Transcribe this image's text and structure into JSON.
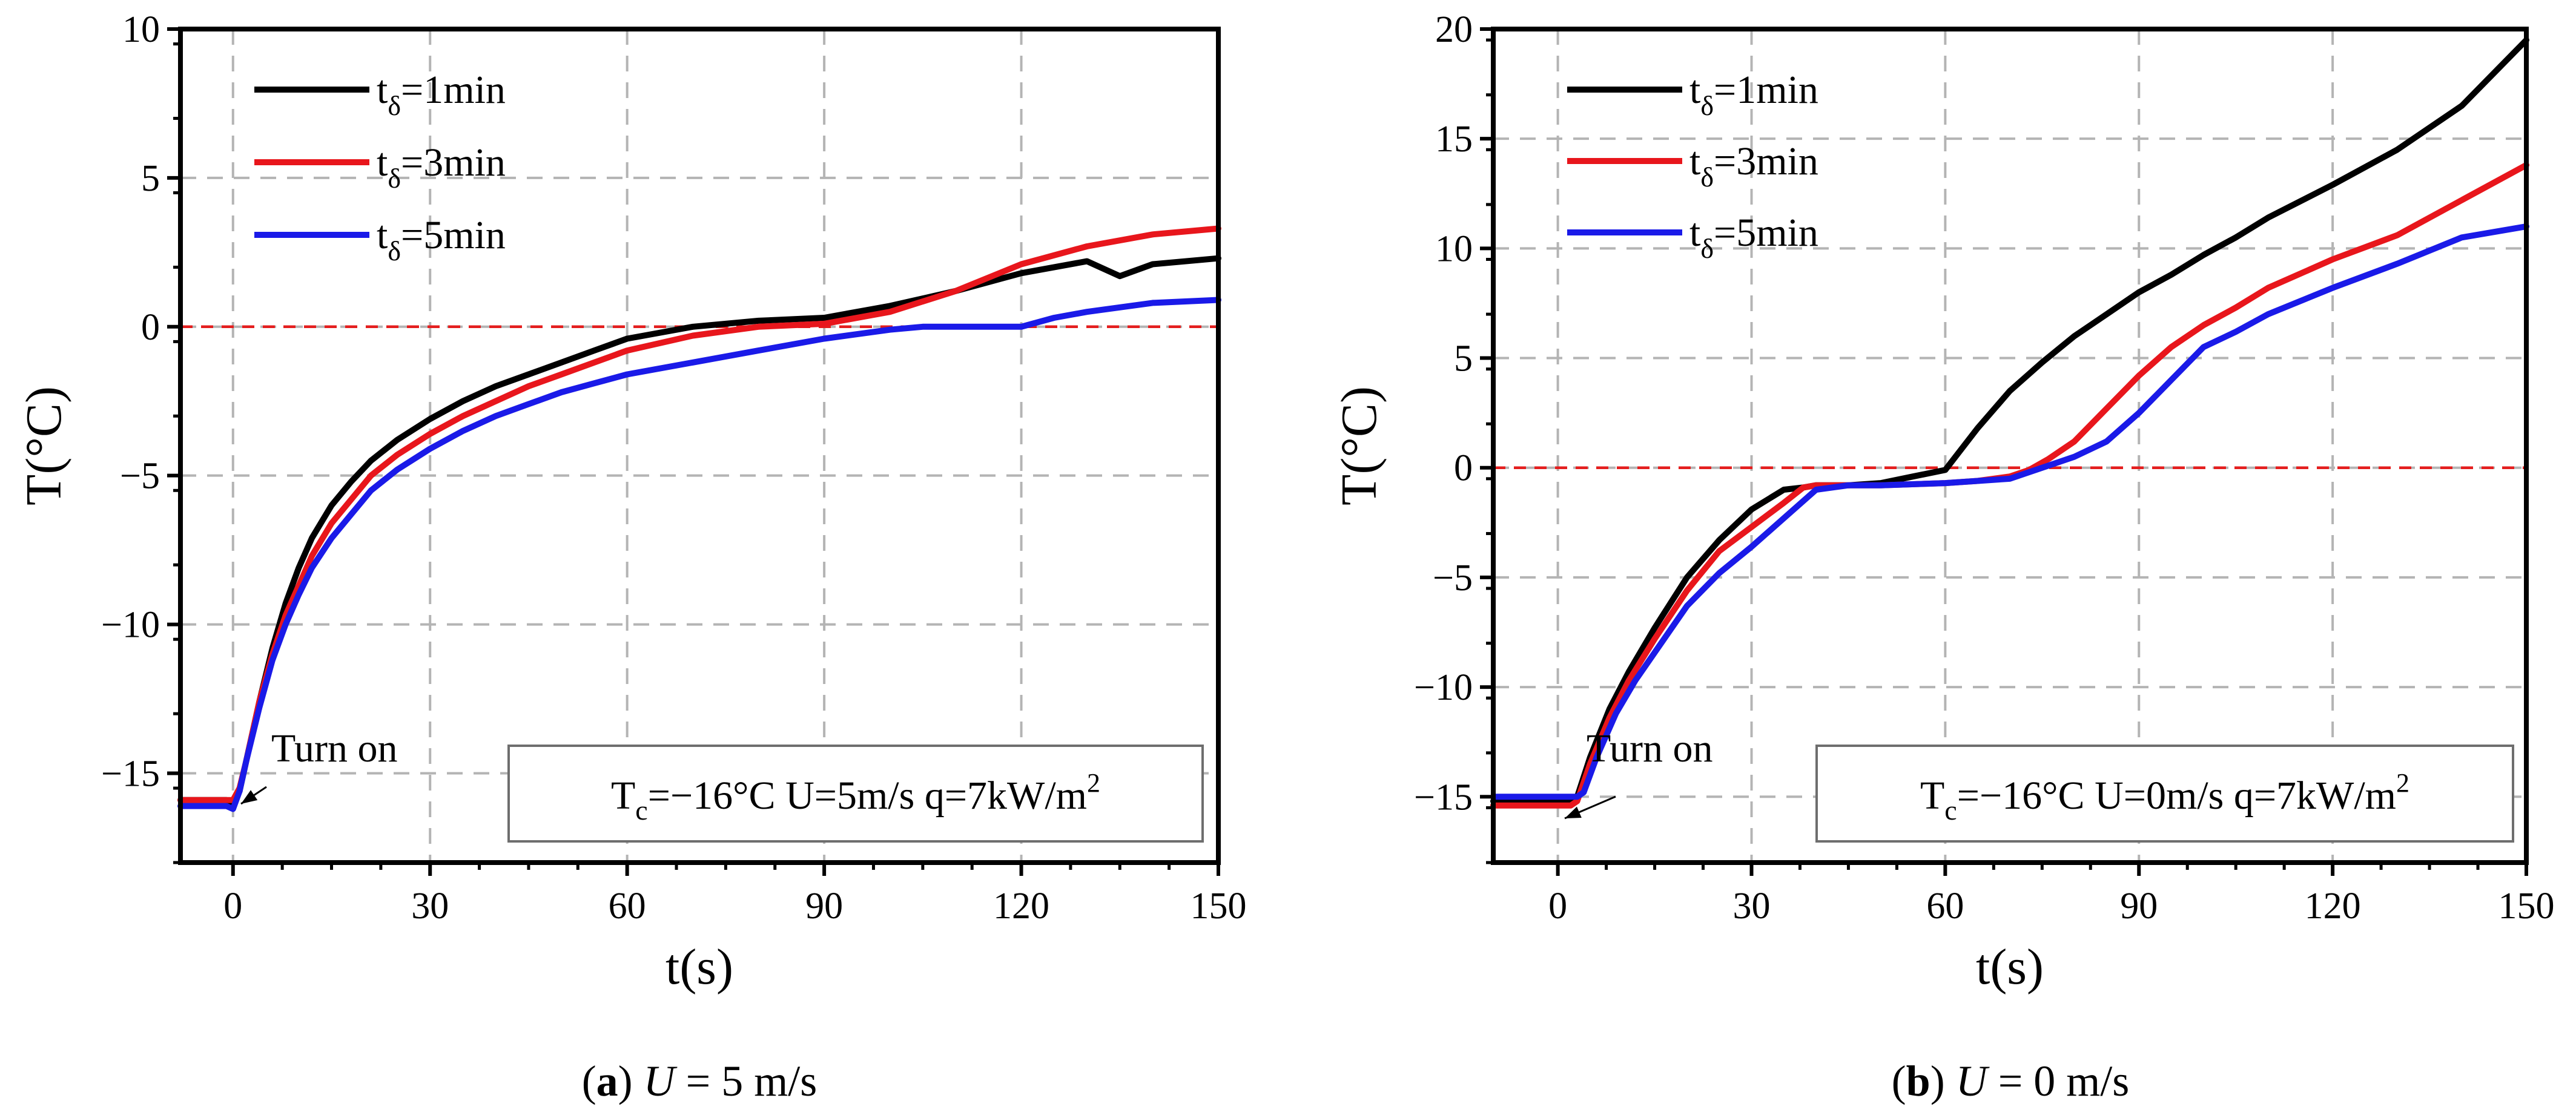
{
  "colors": {
    "series": [
      "#000000",
      "#e8161c",
      "#1a1ae8"
    ],
    "reference": "#e41e1e",
    "grid": "#b4b4b4"
  },
  "chart_data": [
    {
      "type": "line",
      "panel": "a",
      "xlabel": "t(s)",
      "ylabel": "T(°C)",
      "xlim": [
        -8,
        150
      ],
      "ylim": [
        -18,
        10
      ],
      "xticks": [
        0,
        30,
        60,
        90,
        120,
        150
      ],
      "xtick_labels": [
        "0",
        "30",
        "60",
        "90",
        "120",
        "150"
      ],
      "yticks": [
        -15,
        -10,
        -5,
        0,
        5,
        10
      ],
      "ytick_labels": [
        "−15",
        "−10",
        "−5",
        "0",
        "5",
        "10"
      ],
      "reference_line_y": 0,
      "grid": true,
      "legend": {
        "position": "top-left",
        "labels": [
          {
            "base": "t",
            "sub": "δ",
            "rest": "=1min"
          },
          {
            "base": "t",
            "sub": "δ",
            "rest": "=3min"
          },
          {
            "base": "t",
            "sub": "δ",
            "rest": "=5min"
          }
        ]
      },
      "annotation": {
        "text": "Turn on",
        "x": 0,
        "y": -16
      },
      "conditions": {
        "tc_base": "T",
        "tc_sub": "c",
        "tc_rest": "=−16°C",
        "u": "U=5m/s",
        "q": "q=7kW/m",
        "q_sup": "2"
      },
      "caption": {
        "letter": "a",
        "var": "U",
        "rest": " = 5 m/s"
      },
      "series": [
        {
          "name": "tδ=1min",
          "x": [
            -10,
            -1,
            0,
            1,
            2,
            4,
            6,
            8,
            10,
            12,
            15,
            18,
            21,
            25,
            30,
            35,
            40,
            45,
            50,
            55,
            60,
            70,
            80,
            90,
            100,
            110,
            120,
            130,
            135,
            140,
            150
          ],
          "y": [
            -15.9,
            -15.9,
            -16.0,
            -15.6,
            -14.6,
            -12.6,
            -10.8,
            -9.3,
            -8.1,
            -7.1,
            -6.0,
            -5.2,
            -4.5,
            -3.8,
            -3.1,
            -2.5,
            -2.0,
            -1.6,
            -1.2,
            -0.8,
            -0.4,
            0.0,
            0.2,
            0.3,
            0.7,
            1.2,
            1.8,
            2.2,
            1.7,
            2.1,
            2.3
          ]
        },
        {
          "name": "tδ=3min",
          "x": [
            -10,
            -1,
            0,
            1,
            2,
            4,
            6,
            8,
            10,
            12,
            15,
            18,
            21,
            25,
            30,
            35,
            40,
            45,
            50,
            55,
            60,
            70,
            80,
            90,
            100,
            110,
            120,
            130,
            140,
            150
          ],
          "y": [
            -15.9,
            -15.9,
            -15.9,
            -15.5,
            -14.6,
            -12.6,
            -11.0,
            -9.7,
            -8.7,
            -7.7,
            -6.6,
            -5.8,
            -5.0,
            -4.3,
            -3.6,
            -3.0,
            -2.5,
            -2.0,
            -1.6,
            -1.2,
            -0.8,
            -0.3,
            0.0,
            0.1,
            0.5,
            1.2,
            2.1,
            2.7,
            3.1,
            3.3
          ]
        },
        {
          "name": "tδ=5min",
          "x": [
            -10,
            -1,
            0,
            1,
            2,
            4,
            6,
            8,
            10,
            12,
            15,
            18,
            21,
            25,
            30,
            35,
            40,
            45,
            50,
            55,
            60,
            70,
            80,
            90,
            100,
            105,
            110,
            120,
            125,
            130,
            140,
            150
          ],
          "y": [
            -16.1,
            -16.1,
            -16.2,
            -15.6,
            -14.6,
            -12.8,
            -11.2,
            -10.0,
            -9.0,
            -8.1,
            -7.1,
            -6.3,
            -5.5,
            -4.8,
            -4.1,
            -3.5,
            -3.0,
            -2.6,
            -2.2,
            -1.9,
            -1.6,
            -1.2,
            -0.8,
            -0.4,
            -0.1,
            0.0,
            0.0,
            0.0,
            0.3,
            0.5,
            0.8,
            0.9
          ]
        }
      ]
    },
    {
      "type": "line",
      "panel": "b",
      "xlabel": "t(s)",
      "ylabel": "T(°C)",
      "xlim": [
        -10,
        150
      ],
      "ylim": [
        -18,
        20
      ],
      "xticks": [
        0,
        30,
        60,
        90,
        120,
        150
      ],
      "xtick_labels": [
        "0",
        "30",
        "60",
        "90",
        "120",
        "150"
      ],
      "yticks": [
        -15,
        -10,
        -5,
        0,
        5,
        10,
        15,
        20
      ],
      "ytick_labels": [
        "−15",
        "−10",
        "−5",
        "0",
        "5",
        "10",
        "15",
        "20"
      ],
      "reference_line_y": 0,
      "grid": true,
      "legend": {
        "position": "top-left",
        "labels": [
          {
            "base": "t",
            "sub": "δ",
            "rest": "=1min"
          },
          {
            "base": "t",
            "sub": "δ",
            "rest": "=3min"
          },
          {
            "base": "t",
            "sub": "δ",
            "rest": "=5min"
          }
        ]
      },
      "annotation": {
        "text": "Turn on",
        "x": 0,
        "y": -16
      },
      "conditions": {
        "tc_base": "T",
        "tc_sub": "c",
        "tc_rest": "=−16°C",
        "u": "U=0m/s",
        "q": "q=7kW/m",
        "q_sup": "2"
      },
      "caption": {
        "letter": "b",
        "var": "U",
        "rest": " = 0 m/s"
      },
      "series": [
        {
          "name": "tδ=1min",
          "x": [
            -10,
            2,
            3,
            5,
            8,
            11,
            15,
            20,
            25,
            30,
            35,
            38,
            40,
            45,
            50,
            55,
            60,
            65,
            70,
            75,
            80,
            85,
            90,
            95,
            100,
            105,
            110,
            120,
            130,
            140,
            150
          ],
          "y": [
            -15.2,
            -15.2,
            -15.0,
            -13.2,
            -11.0,
            -9.3,
            -7.3,
            -5.0,
            -3.3,
            -1.9,
            -1.0,
            -0.9,
            -0.8,
            -0.8,
            -0.7,
            -0.4,
            -0.1,
            1.8,
            3.5,
            4.8,
            6.0,
            7.0,
            8.0,
            8.8,
            9.7,
            10.5,
            11.4,
            12.9,
            14.5,
            16.5,
            19.5
          ]
        },
        {
          "name": "tδ=3min",
          "x": [
            -10,
            2,
            3,
            5,
            8,
            11,
            15,
            20,
            25,
            30,
            35,
            38,
            40,
            45,
            50,
            60,
            65,
            70,
            73,
            76,
            80,
            85,
            90,
            95,
            100,
            105,
            110,
            120,
            130,
            140,
            150
          ],
          "y": [
            -15.4,
            -15.4,
            -15.2,
            -13.5,
            -11.4,
            -9.7,
            -7.8,
            -5.6,
            -3.8,
            -2.7,
            -1.6,
            -0.9,
            -0.8,
            -0.8,
            -0.8,
            -0.7,
            -0.6,
            -0.4,
            -0.1,
            0.4,
            1.2,
            2.7,
            4.2,
            5.5,
            6.5,
            7.3,
            8.2,
            9.5,
            10.6,
            12.2,
            13.8
          ]
        },
        {
          "name": "tδ=5min",
          "x": [
            -10,
            3,
            4,
            6,
            9,
            12,
            16,
            20,
            25,
            30,
            35,
            40,
            45,
            50,
            60,
            70,
            73,
            76,
            80,
            85,
            90,
            95,
            100,
            105,
            110,
            120,
            130,
            140,
            150
          ],
          "y": [
            -15.0,
            -15.0,
            -14.8,
            -13.2,
            -11.2,
            -9.7,
            -8.0,
            -6.3,
            -4.8,
            -3.6,
            -2.3,
            -1.0,
            -0.8,
            -0.8,
            -0.7,
            -0.5,
            -0.2,
            0.1,
            0.5,
            1.2,
            2.5,
            4.0,
            5.5,
            6.2,
            7.0,
            8.2,
            9.3,
            10.5,
            11.0
          ]
        }
      ]
    }
  ]
}
